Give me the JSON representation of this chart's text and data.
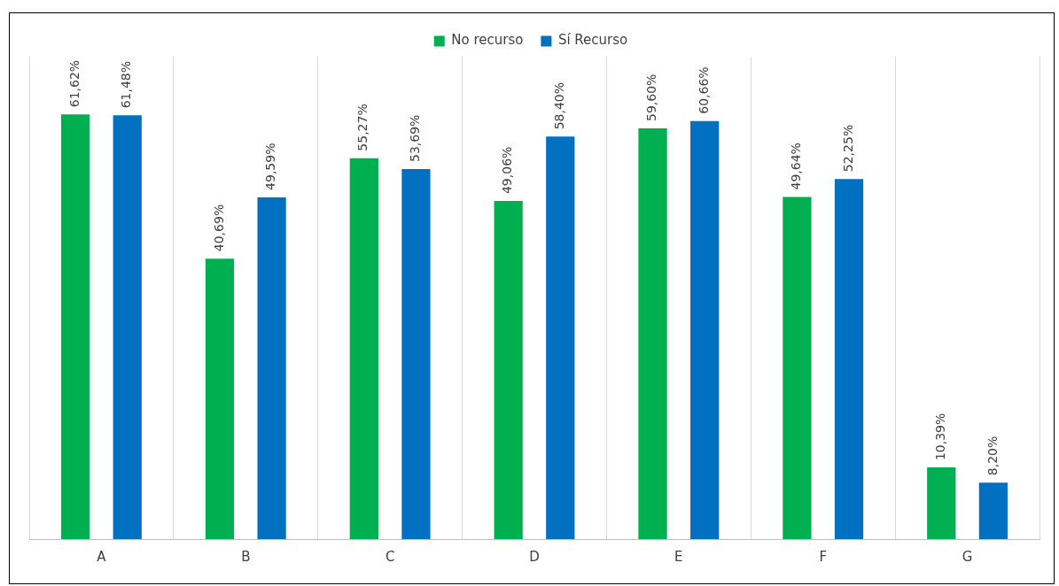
{
  "chart_data": {
    "type": "bar",
    "categories": [
      "A",
      "B",
      "C",
      "D",
      "E",
      "F",
      "G"
    ],
    "series": [
      {
        "name": "No recurso",
        "color": "#00b050",
        "values": [
          61.62,
          40.69,
          55.27,
          49.06,
          59.6,
          49.64,
          10.39
        ],
        "value_labels": [
          "61,62%",
          "40,69%",
          "55,27%",
          "49,06%",
          "59,60%",
          "49,64%",
          "10,39%"
        ]
      },
      {
        "name": "Sí Recurso",
        "color": "#0070c0",
        "values": [
          61.48,
          49.59,
          53.69,
          58.4,
          60.66,
          52.25,
          8.2
        ],
        "value_labels": [
          "61,48%",
          "49,59%",
          "53,69%",
          "58,40%",
          "60,66%",
          "52,25%",
          "8,20%"
        ]
      }
    ],
    "ylim": [
      0,
      70
    ],
    "tick_labels": "x",
    "grid": "x",
    "legend": "top"
  }
}
